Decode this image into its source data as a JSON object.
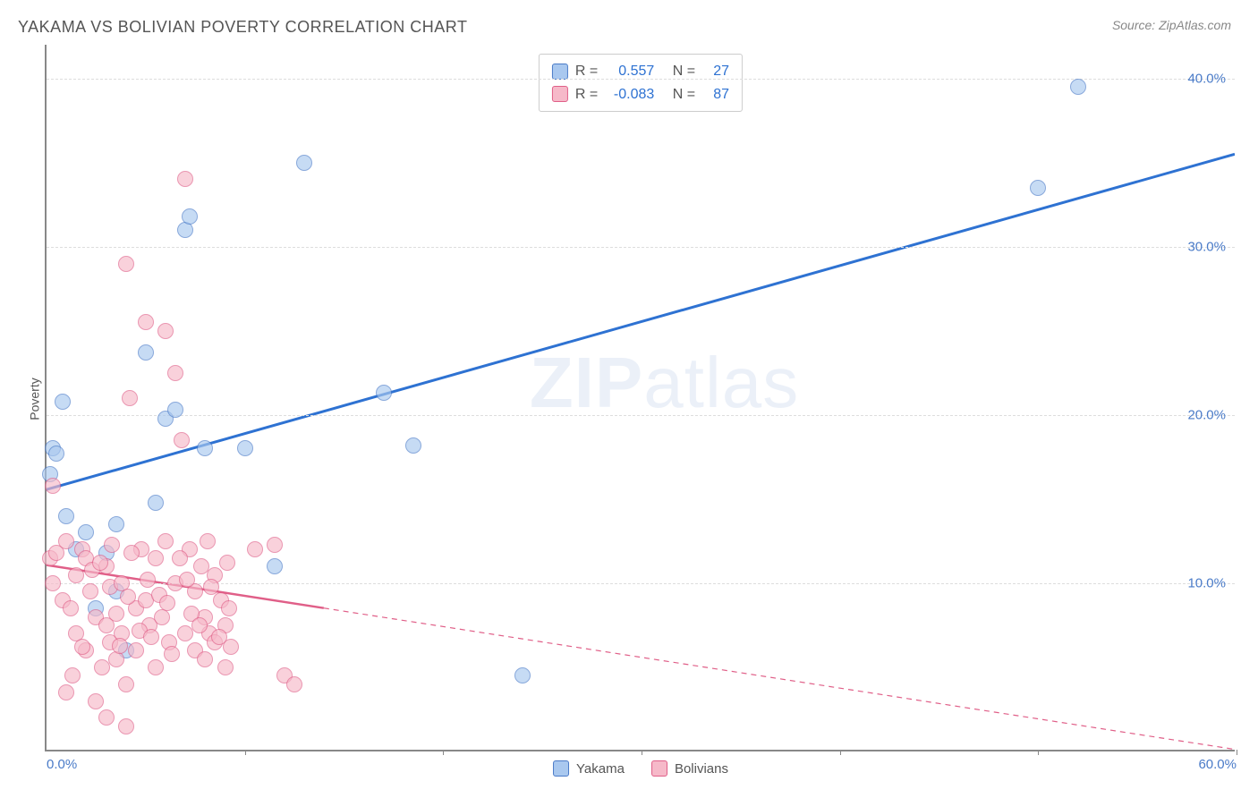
{
  "title": "YAKAMA VS BOLIVIAN POVERTY CORRELATION CHART",
  "source": "Source: ZipAtlas.com",
  "y_axis_label": "Poverty",
  "watermark_bold": "ZIP",
  "watermark_light": "atlas",
  "chart": {
    "type": "scatter",
    "background_color": "#ffffff",
    "grid_color": "#dddddd",
    "axis_color": "#888888",
    "tick_label_color": "#4a7bc8",
    "xlim": [
      0,
      60
    ],
    "ylim": [
      0,
      42
    ],
    "x_ticks": [
      0,
      10,
      20,
      30,
      40,
      50,
      60
    ],
    "x_tick_labels": [
      "0.0%",
      "",
      "",
      "",
      "",
      "",
      "60.0%"
    ],
    "y_grid": [
      10,
      20,
      30,
      40
    ],
    "y_tick_labels": [
      "10.0%",
      "20.0%",
      "30.0%",
      "40.0%"
    ]
  },
  "series": [
    {
      "name": "Yakama",
      "marker_fill": "#a9c8ef",
      "marker_stroke": "#4a7bc8",
      "marker_radius": 9,
      "trend_color": "#2e72d2",
      "trend_width": 3,
      "trend_solid_xmax": 60,
      "R": "0.557",
      "N": "27",
      "regression": {
        "intercept": 15.5,
        "slope": 0.333
      },
      "points": [
        [
          0.2,
          16.5
        ],
        [
          0.3,
          18.0
        ],
        [
          0.5,
          17.7
        ],
        [
          0.8,
          20.8
        ],
        [
          1.0,
          14.0
        ],
        [
          1.5,
          12.0
        ],
        [
          2.0,
          13.0
        ],
        [
          2.5,
          8.5
        ],
        [
          3.0,
          11.8
        ],
        [
          3.5,
          13.5
        ],
        [
          4.0,
          6.0
        ],
        [
          5.0,
          23.7
        ],
        [
          5.5,
          14.8
        ],
        [
          6.0,
          19.8
        ],
        [
          6.5,
          20.3
        ],
        [
          7.0,
          31.0
        ],
        [
          7.2,
          31.8
        ],
        [
          8.0,
          18.0
        ],
        [
          10.0,
          18.0
        ],
        [
          11.5,
          11.0
        ],
        [
          13.0,
          35.0
        ],
        [
          17.0,
          21.3
        ],
        [
          18.5,
          18.2
        ],
        [
          24.0,
          4.5
        ],
        [
          50.0,
          33.5
        ],
        [
          52.0,
          39.5
        ],
        [
          3.5,
          9.5
        ]
      ]
    },
    {
      "name": "Bolivians",
      "marker_fill": "#f6b9c9",
      "marker_stroke": "#e05f88",
      "marker_radius": 9,
      "trend_color": "#e05f88",
      "trend_width": 2.5,
      "trend_solid_xmax": 14,
      "R": "-0.083",
      "N": "87",
      "regression": {
        "intercept": 11.0,
        "slope": -0.183
      },
      "points": [
        [
          0.2,
          11.5
        ],
        [
          0.3,
          10.0
        ],
        [
          0.5,
          11.8
        ],
        [
          0.8,
          9.0
        ],
        [
          0.3,
          15.8
        ],
        [
          1.0,
          12.5
        ],
        [
          1.2,
          8.5
        ],
        [
          1.5,
          7.0
        ],
        [
          1.5,
          10.5
        ],
        [
          1.8,
          12.0
        ],
        [
          2.0,
          6.0
        ],
        [
          2.0,
          11.5
        ],
        [
          2.2,
          9.5
        ],
        [
          2.5,
          8.0
        ],
        [
          2.5,
          3.0
        ],
        [
          2.8,
          5.0
        ],
        [
          3.0,
          7.5
        ],
        [
          3.0,
          11.0
        ],
        [
          3.2,
          6.5
        ],
        [
          3.2,
          9.8
        ],
        [
          3.5,
          5.5
        ],
        [
          3.5,
          8.2
        ],
        [
          3.8,
          7.0
        ],
        [
          3.8,
          10.0
        ],
        [
          4.0,
          29.0
        ],
        [
          4.0,
          4.0
        ],
        [
          4.2,
          21.0
        ],
        [
          4.5,
          8.5
        ],
        [
          4.5,
          6.0
        ],
        [
          4.8,
          12.0
        ],
        [
          5.0,
          25.5
        ],
        [
          5.0,
          9.0
        ],
        [
          5.2,
          7.5
        ],
        [
          5.5,
          11.5
        ],
        [
          5.5,
          5.0
        ],
        [
          5.8,
          8.0
        ],
        [
          6.0,
          25.0
        ],
        [
          6.0,
          12.5
        ],
        [
          6.2,
          6.5
        ],
        [
          6.5,
          22.5
        ],
        [
          6.5,
          10.0
        ],
        [
          6.8,
          18.5
        ],
        [
          7.0,
          34.0
        ],
        [
          7.0,
          7.0
        ],
        [
          7.2,
          12.0
        ],
        [
          7.5,
          9.5
        ],
        [
          7.5,
          6.0
        ],
        [
          7.8,
          11.0
        ],
        [
          8.0,
          8.0
        ],
        [
          8.0,
          5.5
        ],
        [
          8.2,
          7.0
        ],
        [
          8.5,
          10.5
        ],
        [
          8.5,
          6.5
        ],
        [
          8.8,
          9.0
        ],
        [
          9.0,
          7.5
        ],
        [
          9.0,
          5.0
        ],
        [
          9.2,
          8.5
        ],
        [
          10.5,
          12.0
        ],
        [
          11.5,
          12.3
        ],
        [
          12.0,
          4.5
        ],
        [
          12.5,
          4.0
        ],
        [
          1.0,
          3.5
        ],
        [
          1.3,
          4.5
        ],
        [
          1.8,
          6.2
        ],
        [
          2.3,
          10.8
        ],
        [
          2.7,
          11.2
        ],
        [
          3.3,
          12.3
        ],
        [
          3.7,
          6.3
        ],
        [
          4.1,
          9.2
        ],
        [
          4.3,
          11.8
        ],
        [
          4.7,
          7.2
        ],
        [
          5.1,
          10.2
        ],
        [
          5.3,
          6.8
        ],
        [
          5.7,
          9.3
        ],
        [
          6.1,
          8.8
        ],
        [
          6.3,
          5.8
        ],
        [
          6.7,
          11.5
        ],
        [
          7.1,
          10.2
        ],
        [
          7.3,
          8.2
        ],
        [
          7.7,
          7.5
        ],
        [
          8.1,
          12.5
        ],
        [
          8.3,
          9.8
        ],
        [
          8.7,
          6.8
        ],
        [
          9.1,
          11.2
        ],
        [
          9.3,
          6.2
        ],
        [
          4.0,
          1.5
        ],
        [
          3.0,
          2.0
        ]
      ]
    }
  ],
  "legend_top": {
    "r_label": "R =",
    "n_label": "N ="
  },
  "legend_bottom": {
    "items": [
      "Yakama",
      "Bolivians"
    ]
  }
}
